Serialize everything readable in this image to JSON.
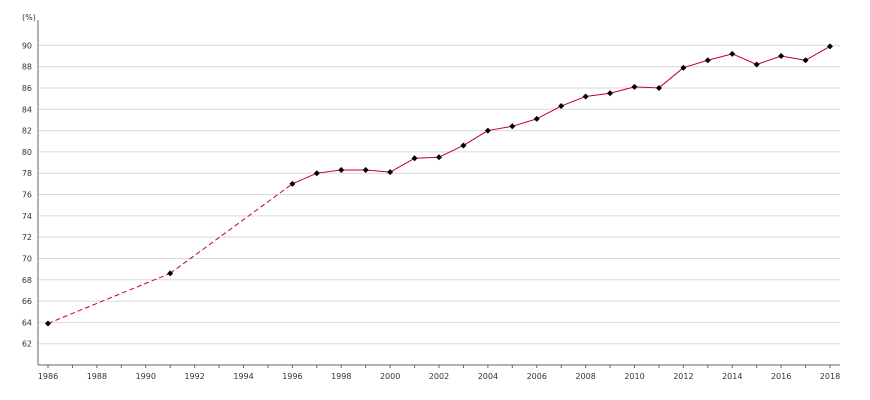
{
  "chart_data": {
    "type": "line",
    "title": "",
    "ylabel": "(%)",
    "xlabel": "",
    "xlim": [
      1986,
      2018
    ],
    "ylim": [
      60,
      92
    ],
    "y_ticks": [
      62,
      64,
      66,
      68,
      70,
      72,
      74,
      76,
      78,
      80,
      82,
      84,
      86,
      88,
      90
    ],
    "x_ticks": [
      1986,
      1988,
      1990,
      1992,
      1994,
      1996,
      1998,
      2000,
      2002,
      2004,
      2006,
      2008,
      2010,
      2012,
      2014,
      2016,
      2018
    ],
    "grid": "horizontal",
    "legend": "none",
    "series": [
      {
        "color": "#c0002a",
        "marker_color": "#000000",
        "points": [
          {
            "x": 1986,
            "y": 63.9
          },
          {
            "x": 1991,
            "y": 68.6
          },
          {
            "x": 1996,
            "y": 77.0
          },
          {
            "x": 1997,
            "y": 78.0
          },
          {
            "x": 1998,
            "y": 78.3
          },
          {
            "x": 1999,
            "y": 78.3
          },
          {
            "x": 2000,
            "y": 78.1
          },
          {
            "x": 2001,
            "y": 79.4
          },
          {
            "x": 2002,
            "y": 79.5
          },
          {
            "x": 2003,
            "y": 80.6
          },
          {
            "x": 2004,
            "y": 82.0
          },
          {
            "x": 2005,
            "y": 82.4
          },
          {
            "x": 2006,
            "y": 83.1
          },
          {
            "x": 2007,
            "y": 84.3
          },
          {
            "x": 2008,
            "y": 85.2
          },
          {
            "x": 2009,
            "y": 85.5
          },
          {
            "x": 2010,
            "y": 86.1
          },
          {
            "x": 2011,
            "y": 86.0
          },
          {
            "x": 2012,
            "y": 87.9
          },
          {
            "x": 2013,
            "y": 88.6
          },
          {
            "x": 2014,
            "y": 89.2
          },
          {
            "x": 2015,
            "y": 88.2
          },
          {
            "x": 2016,
            "y": 89.0
          },
          {
            "x": 2017,
            "y": 88.6
          },
          {
            "x": 2018,
            "y": 89.9
          }
        ],
        "dashed_until_x": 1996
      }
    ]
  }
}
